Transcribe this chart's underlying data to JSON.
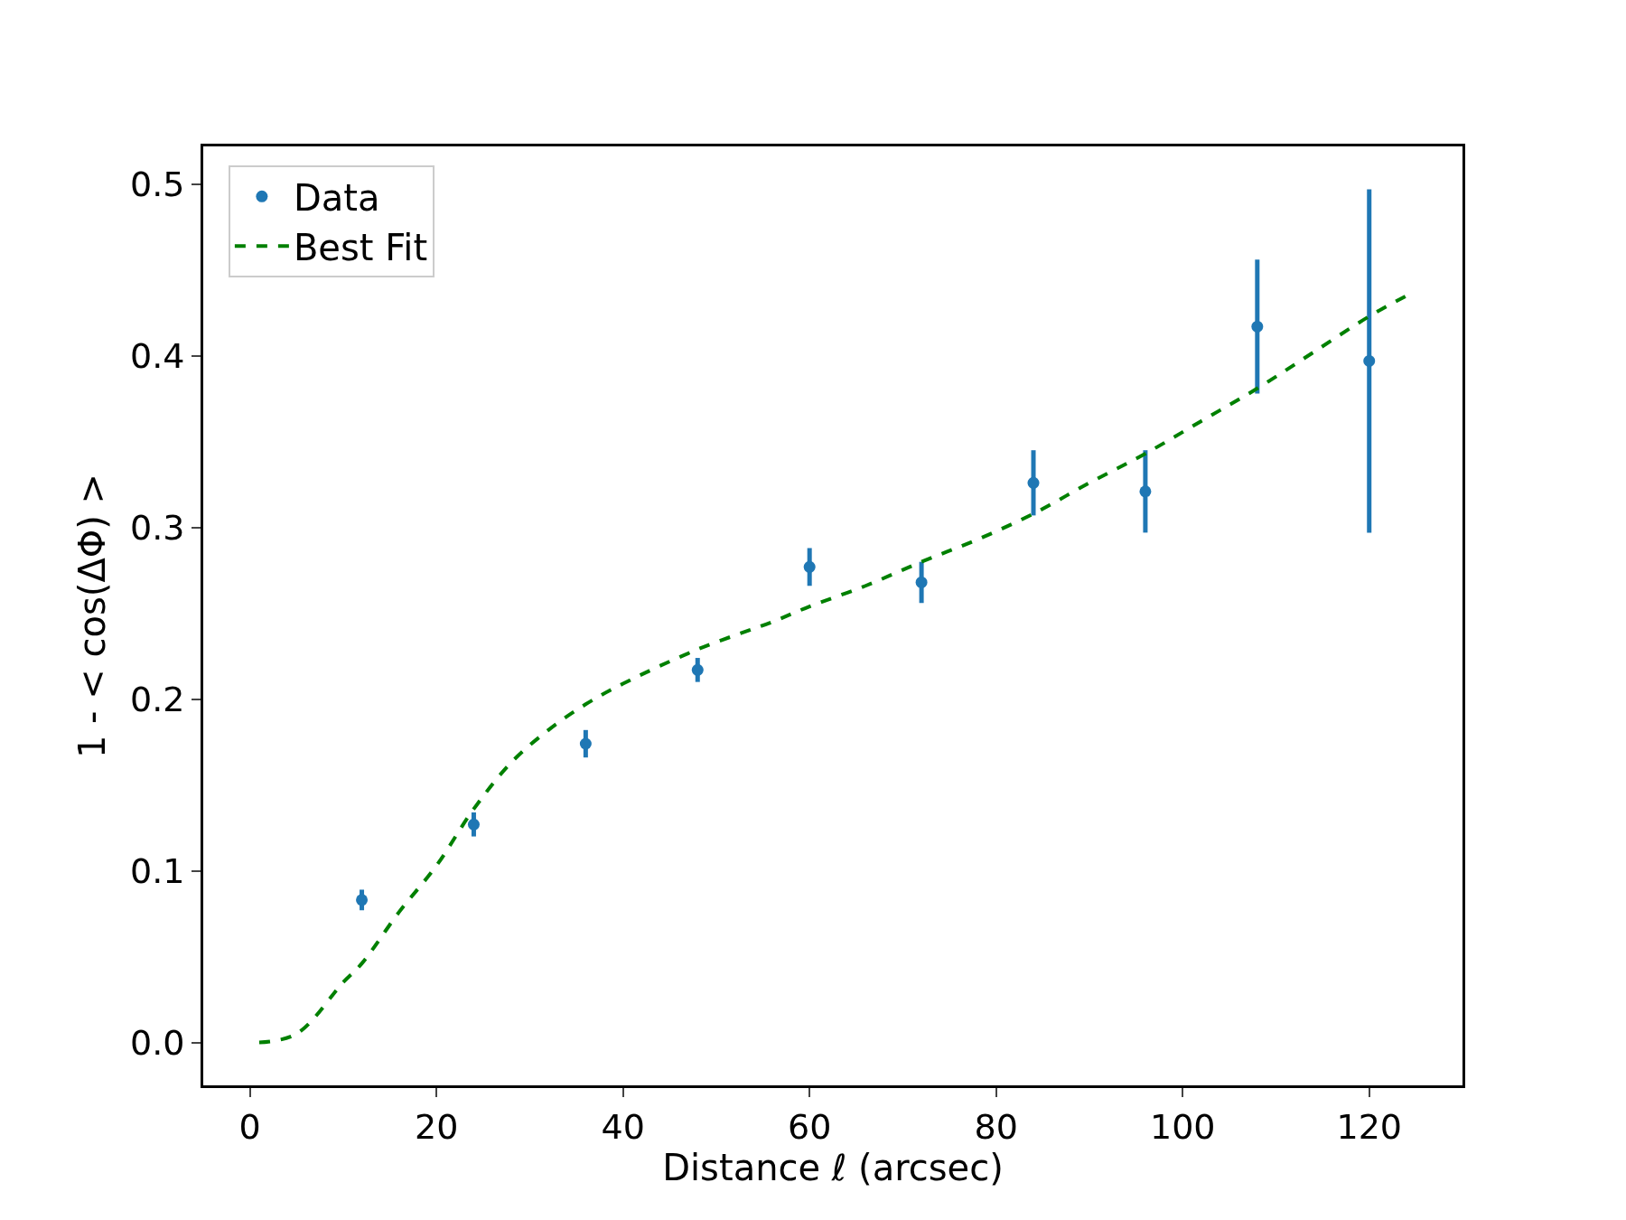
{
  "chart_data": {
    "type": "scatter",
    "xlabel": "Distance ℓ (arcsec)",
    "ylabel": "1 - < cos(ΔΦ) >",
    "xlim": [
      -5,
      130
    ],
    "xticks": [
      0,
      20,
      40,
      60,
      80,
      100,
      120
    ],
    "ylim": [
      -0.025,
      0.522
    ],
    "yticks": [
      {
        "value": 0,
        "label": "0.0"
      },
      0.1,
      0.2,
      0.3,
      0.4,
      0.5
    ],
    "legend": "top left",
    "x": [
      12,
      24,
      36,
      48,
      60,
      72,
      84,
      96,
      108,
      120
    ],
    "series": [
      {
        "name": "Data",
        "color": "#1f77b4",
        "marker": "circle",
        "values": [
          0.083,
          0.127,
          0.174,
          0.217,
          0.277,
          0.268,
          0.326,
          0.321,
          0.417,
          0.397
        ],
        "errors": [
          0.006,
          0.007,
          0.008,
          0.007,
          0.011,
          0.012,
          0.019,
          0.024,
          0.039,
          0.1
        ]
      },
      {
        "name": "Best Fit",
        "type": "line",
        "color": "#008000",
        "marker": "none",
        "line_style": "dashed",
        "x": [
          1,
          5,
          10,
          12,
          16,
          20,
          24,
          28,
          32,
          36,
          40,
          48,
          56,
          60,
          66,
          72,
          78,
          84,
          90,
          96,
          102,
          108,
          114,
          120,
          124
        ],
        "values": [
          0.0,
          0.005,
          0.035,
          0.046,
          0.076,
          0.103,
          0.136,
          0.163,
          0.182,
          0.197,
          0.209,
          0.229,
          0.245,
          0.254,
          0.266,
          0.28,
          0.293,
          0.308,
          0.326,
          0.343,
          0.362,
          0.381,
          0.402,
          0.423,
          0.435
        ]
      }
    ]
  }
}
